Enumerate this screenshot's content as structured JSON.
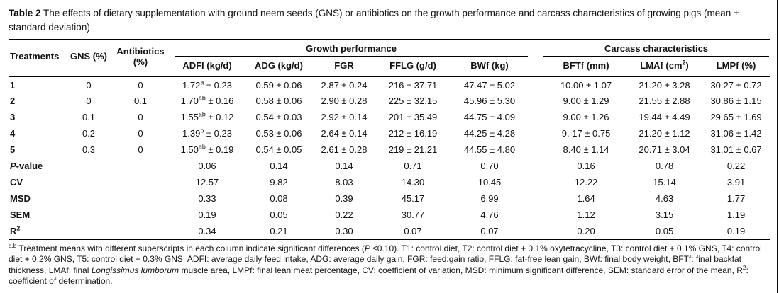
{
  "caption": {
    "label": "Table 2",
    "title": "The effects of dietary supplementation with ground neem seeds (GNS) or antibiotics on the growth performance and carcass characteristics of growing pigs (mean ± standard deviation)"
  },
  "table": {
    "stub_headers": [
      "Treatments",
      "GNS (%)",
      "Antibiotics (%)"
    ],
    "group_headers": [
      {
        "label": "Growth performance",
        "span": 5
      },
      {
        "label": "Carcass characteristics",
        "span": 3
      }
    ],
    "sub_headers": [
      "ADFI (kg/d)",
      "ADG (kg/d)",
      "FGR",
      "FFLG (g/d)",
      "BWf (kg)",
      "BFTf (mm)",
      [
        {
          "t": "LMAf (cm"
        },
        {
          "t": "2",
          "s": "sup"
        },
        {
          "t": ")"
        }
      ],
      "LMPf (%)"
    ],
    "rows": [
      {
        "label": "1",
        "cells": [
          "0",
          "0",
          [
            {
              "t": "1.72"
            },
            {
              "t": "a",
              "s": "sup"
            },
            {
              "t": " ± 0.23"
            }
          ],
          "0.59 ± 0.06",
          "2.87 ± 0.24",
          "216 ± 37.71",
          "47.47 ± 5.02",
          "10.00 ± 1.07",
          "21.20 ± 3.28",
          "30.27 ± 0.72"
        ]
      },
      {
        "label": "2",
        "cells": [
          "0",
          "0.1",
          [
            {
              "t": "1.70"
            },
            {
              "t": "ab",
              "s": "sup"
            },
            {
              "t": " ± 0.16"
            }
          ],
          "0.58 ± 0.06",
          "2.90 ± 0.28",
          "225 ± 32.15",
          "45.96 ± 5.30",
          "9.00 ± 1.29",
          "21.55 ± 2.88",
          "30.86 ± 1.15"
        ]
      },
      {
        "label": "3",
        "cells": [
          "0.1",
          "0",
          [
            {
              "t": "1.55"
            },
            {
              "t": "ab",
              "s": "sup"
            },
            {
              "t": " ± 0.12"
            }
          ],
          "0.54 ± 0.03",
          "2.92 ± 0.14",
          "201 ± 35.49",
          "44.75 ± 4.09",
          "9.00 ± 1.26",
          "19.44 ± 4.49",
          "29.65 ± 1.69"
        ]
      },
      {
        "label": "4",
        "cells": [
          "0.2",
          "0",
          [
            {
              "t": "1.39"
            },
            {
              "t": "b",
              "s": "sup"
            },
            {
              "t": " ± 0.23"
            }
          ],
          "0.53 ± 0.06",
          "2.64 ± 0.14",
          "212 ± 16.19",
          "44.25 ± 4.28",
          "9. 17 ± 0.75",
          "21.20 ± 1.12",
          "31.06 ± 1.42"
        ]
      },
      {
        "label": "5",
        "cells": [
          "0.3",
          "0",
          [
            {
              "t": "1.50"
            },
            {
              "t": "ab",
              "s": "sup"
            },
            {
              "t": " ± 0.19"
            }
          ],
          "0.54 ± 0.05",
          "2.61 ± 0.28",
          "219 ± 21.21",
          "44.55 ± 4.80",
          "8.40 ± 1.14",
          "20.71 ± 3.04",
          "31.01 ± 0.67"
        ]
      },
      {
        "label": [
          {
            "t": "P",
            "s": "italic"
          },
          {
            "t": "-value"
          }
        ],
        "cells": [
          "",
          "",
          "0.06",
          "0.14",
          "0.14",
          "0.71",
          "0.70",
          "0.16",
          "0.78",
          "0.22"
        ]
      },
      {
        "label": "CV",
        "cells": [
          "",
          "",
          "12.57",
          "9.82",
          "8.03",
          "14.30",
          "10.45",
          "12.22",
          "15.14",
          "3.91"
        ]
      },
      {
        "label": "MSD",
        "cells": [
          "",
          "",
          "0.33",
          "0.08",
          "0.39",
          "45.17",
          "6.99",
          "1.64",
          "4.63",
          "1.77"
        ]
      },
      {
        "label": "SEM",
        "cells": [
          "",
          "",
          "0.19",
          "0.05",
          "0.22",
          "30.77",
          "4.76",
          "1.12",
          "3.15",
          "1.19"
        ]
      },
      {
        "label": [
          {
            "t": "R"
          },
          {
            "t": "2",
            "s": "sup"
          }
        ],
        "cells": [
          "",
          "",
          "0.34",
          "0.21",
          "0.30",
          "0.07",
          "0.07",
          "0.20",
          "0.05",
          "0.19"
        ]
      }
    ]
  },
  "footnote": {
    "marker": "a,b",
    "segments": [
      {
        "t": "Treatment means with different superscripts in each column indicate significant differences ("
      },
      {
        "t": "P",
        "s": "italic"
      },
      {
        "t": " ≤0.10). T1: control diet, T2: control diet + 0.1% oxytetracycline, T3: control diet + 0.1% GNS, T4: control diet + 0.2% GNS, T5: control diet + 0.3% GNS. ADFI: average daily feed intake, ADG: average daily gain, FGR: feed:gain ratio, FFLG: fat-free lean gain, BWf: final body weight, BFTf: final backfat thickness, LMAf: final "
      },
      {
        "t": "Longissimus lumborum",
        "s": "italic"
      },
      {
        "t": " muscle area, LMPf: final lean meat percentage, CV: coefficient of variation, MSD: minimum significant difference, SEM: standard error of the mean, R"
      },
      {
        "t": "2",
        "s": "sup"
      },
      {
        "t": ": coefficient of determination."
      }
    ]
  }
}
